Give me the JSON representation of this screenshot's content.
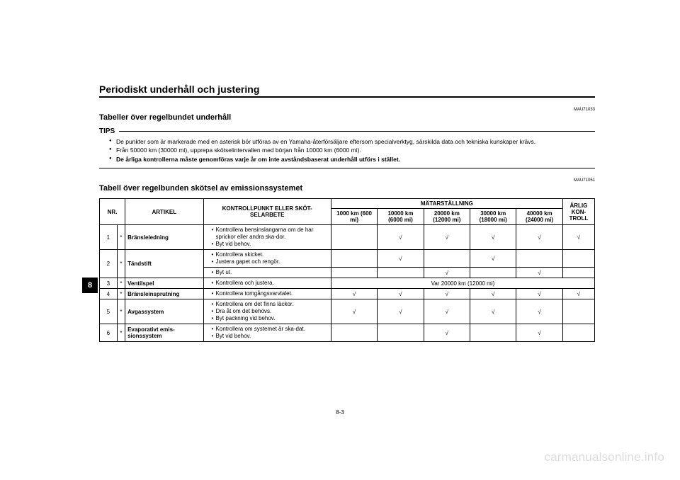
{
  "page_title": "Periodiskt underhåll och justering",
  "ref1": "MAU71033",
  "section1_title": "Tabeller över regelbundet underhåll",
  "tips_label": "TIPS",
  "tips": [
    "De punkter som är markerade med en asterisk bör utföras av en Yamaha-återförsäljare eftersom specialverktyg, särskilda data och tekniska kunskaper krävs.",
    "Från 50000 km (30000 mi), upprepa skötselintervallen med början från 10000 km (6000 mi).",
    "De årliga kontrollerna måste genomföras varje år om inte avståndsbaserat underhåll utförs i stället."
  ],
  "tips_bold_index": 2,
  "ref2": "MAU71051",
  "section2_title": "Tabell över regelbunden skötsel av emissionssystemet",
  "table": {
    "head": {
      "nr": "NR.",
      "artikel": "ARTIKEL",
      "job": "KONTROLLPUNKT ELLER SKÖT-SELARBETE",
      "odo_group": "MÄTARSTÄLLNING",
      "annual": "ÅRLIG KON-TROLL",
      "intervals": [
        "1000 km (600 mi)",
        "10000 km (6000 mi)",
        "20000 km (12000 mi)",
        "30000 km (18000 mi)",
        "40000 km (24000 mi)"
      ]
    },
    "rows": [
      {
        "nr": "1",
        "star": "*",
        "artikel": "Bränsleledning",
        "jobs": [
          "Kontrollera bensinslangarna om de har sprickor eller andra ska-dor.",
          "Byt vid behov."
        ],
        "marks": [
          "",
          "√",
          "√",
          "√",
          "√"
        ],
        "annual": "√"
      },
      {
        "nr": "2",
        "star": "*",
        "artikel": "Tändstift",
        "jobs_a": [
          "Kontrollera skicket.",
          "Justera gapet och rengör."
        ],
        "marks_a": [
          "",
          "√",
          "",
          "√",
          ""
        ],
        "annual_a": "",
        "jobs_b": [
          "Byt ut."
        ],
        "marks_b": [
          "",
          "",
          "√",
          "",
          "√"
        ],
        "annual_b": ""
      },
      {
        "nr": "3",
        "star": "*",
        "artikel": "Ventilspel",
        "jobs": [
          "Kontrollera och justera."
        ],
        "span_text": "Var 20000 km (12000 mi)"
      },
      {
        "nr": "4",
        "star": "*",
        "artikel": "Bränsleinsprutning",
        "jobs": [
          "Kontrollera tomgångsvarvtalet."
        ],
        "marks": [
          "√",
          "√",
          "√",
          "√",
          "√"
        ],
        "annual": "√"
      },
      {
        "nr": "5",
        "star": "*",
        "artikel": "Avgassystem",
        "jobs": [
          "Kontrollera om det finns läckor.",
          "Dra åt om det behövs.",
          "Byt packning vid behov."
        ],
        "marks": [
          "√",
          "√",
          "√",
          "√",
          "√"
        ],
        "annual": ""
      },
      {
        "nr": "6",
        "star": "*",
        "artikel": "Evaporativt emis-sionssystem",
        "jobs": [
          "Kontrollera om systemet är ska-dat.",
          "Byt vid behov."
        ],
        "marks": [
          "",
          "",
          "√",
          "",
          "√"
        ],
        "annual": ""
      }
    ]
  },
  "tab_number": "8",
  "footer_page": "8-3",
  "watermark": "carmanualsonline.info"
}
